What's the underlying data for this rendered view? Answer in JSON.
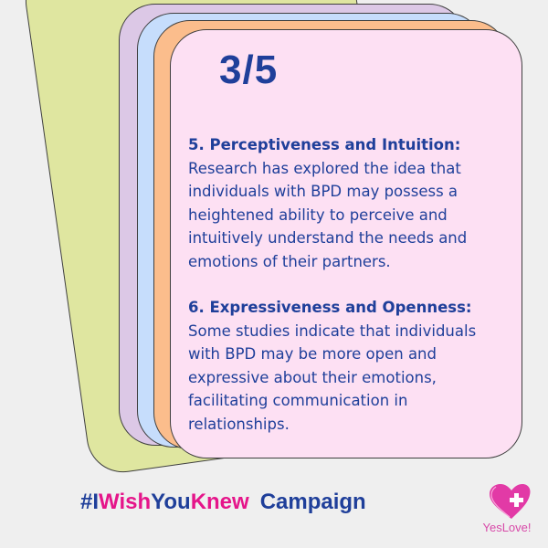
{
  "page_indicator": "3/5",
  "points": [
    {
      "heading": "5. Perceptiveness and Intuition:",
      "body": "Research has explored the idea that individuals with BPD may possess a heightened ability to perceive and intuitively understand the needs and emotions of their partners."
    },
    {
      "heading": "6. Expressiveness and Openness:",
      "body": "Some studies indicate that individuals with BPD may be more open and expressive about their emotions, facilitating communication in relationships."
    }
  ],
  "campaign": {
    "hash_i": "#I",
    "wish": "Wish",
    "you": "You",
    "knew": "Knew",
    "word": "Campaign"
  },
  "logo": {
    "text": "YesLove!",
    "icon": "heart-plus-icon"
  },
  "colors": {
    "background": "#efefef",
    "accent_blue": "#1f3f9a",
    "accent_pink": "#e5158a",
    "card_main": "#fde0f3",
    "card_orange": "#fbbd8c",
    "card_blue": "#c6ddfc",
    "card_lilac": "#dcc8e6",
    "card_green": "#dfe6a0"
  }
}
